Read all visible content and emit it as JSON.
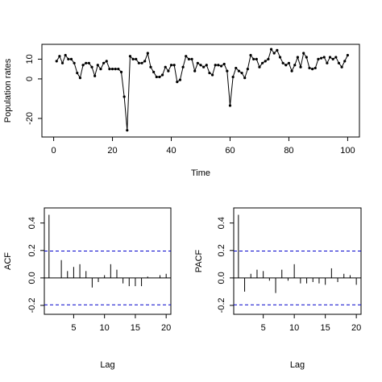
{
  "chart_data": [
    {
      "type": "line",
      "ylabel": "Population rates",
      "xlabel": "Time",
      "color": "#000000",
      "x": [
        1,
        2,
        3,
        4,
        5,
        6,
        7,
        8,
        9,
        10,
        11,
        12,
        13,
        14,
        15,
        16,
        17,
        18,
        19,
        20,
        21,
        22,
        23,
        24,
        25,
        26,
        27,
        28,
        29,
        30,
        31,
        32,
        33,
        34,
        35,
        36,
        37,
        38,
        39,
        40,
        41,
        42,
        43,
        44,
        45,
        46,
        47,
        48,
        49,
        50,
        51,
        52,
        53,
        54,
        55,
        56,
        57,
        58,
        59,
        60,
        61,
        62,
        63,
        64,
        65,
        66,
        67,
        68,
        69,
        70,
        71,
        72,
        73,
        74,
        75,
        76,
        77,
        78,
        79,
        80,
        81,
        82,
        83,
        84,
        85,
        86,
        87,
        88,
        89,
        90,
        91,
        92,
        93,
        94,
        95,
        96,
        97,
        98,
        99,
        100
      ],
      "values": [
        9,
        11.5,
        8,
        12,
        10,
        10,
        8,
        3,
        0.5,
        7,
        8,
        8,
        6,
        1.5,
        7,
        5,
        8,
        9,
        5,
        5,
        5,
        5,
        3.5,
        -9,
        -26,
        11.5,
        10,
        10,
        8,
        8,
        9,
        13,
        6,
        3.5,
        1,
        1,
        2,
        6,
        4,
        7,
        7,
        -1.5,
        -0.5,
        6,
        11.5,
        10,
        10,
        4,
        8,
        7,
        6,
        7,
        3,
        2,
        7,
        7,
        6.5,
        7.5,
        4,
        -13.5,
        1,
        5.5,
        4,
        3,
        0.5,
        5,
        12,
        10,
        10,
        6,
        8,
        9,
        10,
        15,
        13,
        14.5,
        11,
        8,
        7,
        8,
        4,
        7,
        11,
        6,
        13,
        11,
        5.5,
        5,
        5.5,
        10,
        10.5,
        11,
        8,
        11,
        10,
        11,
        8,
        6,
        9,
        12
      ],
      "xlim": [
        -4,
        104
      ],
      "ylim": [
        -29.4,
        17.5
      ],
      "xticks": [
        0,
        20,
        40,
        60,
        80,
        100
      ],
      "yticks": [
        -20,
        0,
        10
      ]
    },
    {
      "type": "stem",
      "ylabel": "ACF",
      "xlabel": "Lag",
      "color": "#000000",
      "conf_color": "#0000cc",
      "x": [
        1,
        2,
        3,
        4,
        5,
        6,
        7,
        8,
        9,
        10,
        11,
        12,
        13,
        14,
        15,
        16,
        17,
        18,
        19,
        20
      ],
      "values": [
        0.46,
        0.0,
        0.13,
        0.05,
        0.08,
        0.1,
        0.05,
        -0.07,
        -0.03,
        0.02,
        0.1,
        0.06,
        -0.04,
        -0.06,
        -0.06,
        -0.06,
        0.01,
        0.0,
        0.02,
        0.03
      ],
      "conf_limits": [
        -0.196,
        0.196
      ],
      "xlim": [
        0.24,
        20.76
      ],
      "ylim": [
        -0.265,
        0.51
      ],
      "xticks": [
        5,
        10,
        15,
        20
      ],
      "yticks": [
        -0.2,
        {
          "value": 0,
          "label": "0.0"
        },
        0.2,
        0.4
      ]
    },
    {
      "type": "stem",
      "ylabel": "PACF",
      "xlabel": "Lag",
      "color": "#000000",
      "conf_color": "#0000cc",
      "x": [
        1,
        2,
        3,
        4,
        5,
        6,
        7,
        8,
        9,
        10,
        11,
        12,
        13,
        14,
        15,
        16,
        17,
        18,
        19,
        20
      ],
      "values": [
        0.46,
        -0.1,
        0.03,
        0.06,
        0.05,
        -0.02,
        -0.11,
        0.06,
        -0.02,
        0.1,
        -0.04,
        -0.04,
        -0.03,
        -0.04,
        -0.05,
        0.07,
        -0.03,
        0.03,
        0.02,
        -0.05
      ],
      "conf_limits": [
        -0.196,
        0.196
      ],
      "xlim": [
        0.24,
        20.76
      ],
      "ylim": [
        -0.265,
        0.51
      ],
      "xticks": [
        5,
        10,
        15,
        20
      ],
      "yticks": [
        -0.2,
        {
          "value": 0,
          "label": "0.0"
        },
        0.2,
        0.4
      ]
    }
  ]
}
